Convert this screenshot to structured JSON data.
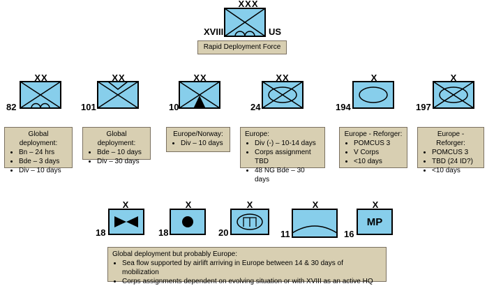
{
  "corps": {
    "echelon": "XXX",
    "left_label": "XVIII",
    "right_label": "US",
    "caption": "Rapid Deployment Force"
  },
  "divisions": [
    {
      "id": "82",
      "echelon": "XX",
      "symbol": "airborne-infantry",
      "note_title": "Global deployment:",
      "notes": [
        "Bn – 24 hrs",
        "Bde – 3 days",
        "Div – 10 days"
      ]
    },
    {
      "id": "101",
      "echelon": "XX",
      "symbol": "air-assault-infantry",
      "note_title": "Global deployment:",
      "notes": [
        "Bde – 10 days",
        "Div – 30 days"
      ]
    },
    {
      "id": "10",
      "echelon": "XX",
      "symbol": "mountain-infantry",
      "note_title": "Europe/Norway:",
      "notes": [
        "Div – 10 days"
      ]
    },
    {
      "id": "24",
      "echelon": "XX",
      "symbol": "mechanized-infantry",
      "note_title": "Europe:",
      "notes": [
        "Div (-) – 10-14 days",
        "Corps assignment TBD",
        "48 NG Bde – 30 days"
      ]
    },
    {
      "id": "194",
      "echelon": "X",
      "symbol": "armor",
      "note_title": "Europe - Reforger:",
      "notes": [
        "POMCUS 3",
        "V Corps",
        "<10 days"
      ]
    },
    {
      "id": "197",
      "echelon": "X",
      "symbol": "mechanized-infantry",
      "note_title": "Europe - Reforger:",
      "notes": [
        "POMCUS 3",
        "TBD (24 ID?)",
        "<10 days"
      ]
    }
  ],
  "support_units": [
    {
      "id": "18",
      "echelon": "X",
      "symbol": "aviation"
    },
    {
      "id": "18",
      "echelon": "X",
      "symbol": "field-artillery"
    },
    {
      "id": "20",
      "echelon": "X",
      "symbol": "engineer"
    },
    {
      "id": "11",
      "echelon": "X",
      "symbol": "air-defense"
    },
    {
      "id": "16",
      "echelon": "X",
      "symbol": "military-police",
      "text": "MP"
    }
  ],
  "bottom_note": {
    "title": "Global deployment but  probably Europe:",
    "bullets": [
      "Sea flow supported by airlift arriving in Europe between 14 & 30 days of mobilization",
      "Corps assignments dependent on evolving situation or with XVIII as an active HQ"
    ]
  },
  "colors": {
    "symbol_fill": "#87ceeb",
    "note_fill": "#d8cfb2"
  }
}
